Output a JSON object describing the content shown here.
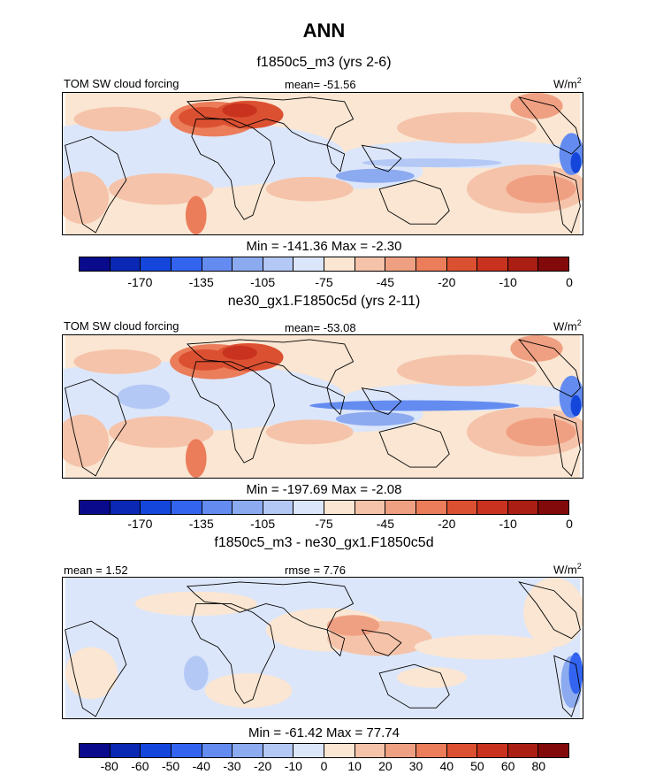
{
  "figure": {
    "title": "ANN"
  },
  "panels": [
    {
      "subtitle": "f1850c5_m3 (yrs 2-6)",
      "left_label": "TOM SW cloud forcing",
      "center_label": "mean= -51.56",
      "units": "W/m",
      "units_sup": "2",
      "min_max": "Min = -141.36 Max =  -2.30",
      "colorbar_ticks": [
        "-170",
        "-135",
        "-105",
        "-75",
        "-45",
        "-20",
        "-10",
        "0"
      ]
    },
    {
      "subtitle": "ne30_gx1.F1850c5d (yrs 2-11)",
      "left_label": "TOM SW cloud forcing",
      "center_label": "mean= -53.08",
      "units": "W/m",
      "units_sup": "2",
      "min_max": "Min = -197.69 Max =  -2.08",
      "colorbar_ticks": [
        "-170",
        "-135",
        "-105",
        "-75",
        "-45",
        "-20",
        "-10",
        "0"
      ]
    },
    {
      "subtitle": "f1850c5_m3 - ne30_gx1.F1850c5d",
      "left_label": "mean =   1.52",
      "center_label": "rmse =   7.76",
      "units": "W/m",
      "units_sup": "2",
      "min_max": "Min = -61.42 Max =  77.74",
      "colorbar_ticks": [
        "-80",
        "-60",
        "-50",
        "-40",
        "-30",
        "-20",
        "-10",
        "0",
        "10",
        "20",
        "30",
        "40",
        "50",
        "60",
        "80"
      ]
    }
  ],
  "colorbar_colors": [
    "#0a0a8c",
    "#0a28b4",
    "#1446dc",
    "#3264f0",
    "#648cf0",
    "#8caaf0",
    "#b4c8f5",
    "#dce6fa",
    "#fae6d2",
    "#f5c3aa",
    "#f0a082",
    "#eb7d5a",
    "#dc5032",
    "#c8321e",
    "#aa1e14",
    "#820a0a"
  ],
  "colors": {
    "background": "#ffffff",
    "coastline": "#000000"
  }
}
